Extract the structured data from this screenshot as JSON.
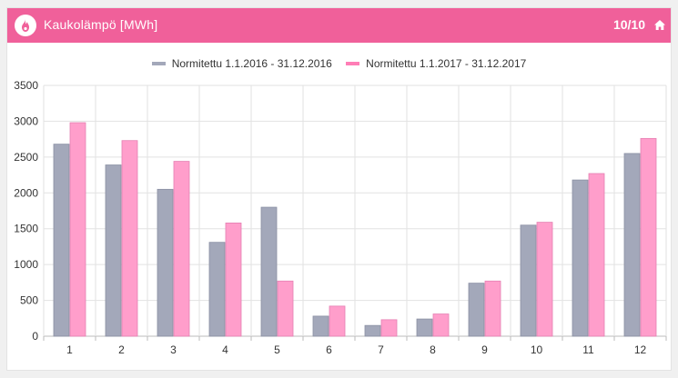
{
  "header": {
    "title": "Kaukolämpö [MWh]",
    "counter": "10/10",
    "icon": "flame-icon",
    "home_icon": "home-icon",
    "color": "#f0609a"
  },
  "chart_data": {
    "type": "bar",
    "categories": [
      "1",
      "2",
      "3",
      "4",
      "5",
      "6",
      "7",
      "8",
      "9",
      "10",
      "11",
      "12"
    ],
    "series": [
      {
        "name": "Normitettu 1.1.2016 - 31.12.2016",
        "color": "#a3a8ba",
        "values": [
          2680,
          2390,
          2050,
          1310,
          1800,
          280,
          150,
          240,
          740,
          1550,
          2180,
          2550
        ]
      },
      {
        "name": "Normitettu 1.1.2017 - 31.12.2017",
        "color": "#ff9ecb",
        "values": [
          2980,
          2730,
          2440,
          1580,
          770,
          420,
          230,
          310,
          770,
          1590,
          2270,
          2760
        ]
      }
    ],
    "ylim": [
      0,
      3500
    ],
    "yticks": [
      "0",
      "500",
      "1000",
      "1500",
      "2000",
      "2500",
      "3000",
      "3500"
    ],
    "grid": true,
    "legend_position": "top"
  }
}
